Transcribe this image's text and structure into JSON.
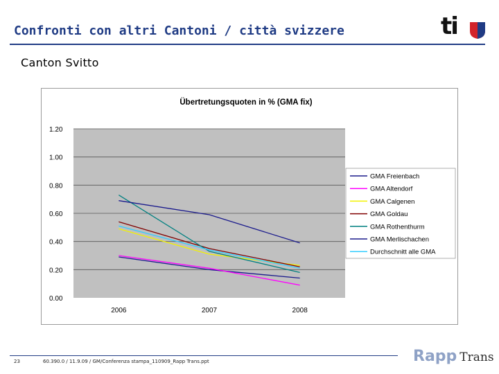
{
  "header": {
    "title": "Confronti con altri Cantoni / città svizzere",
    "subtitle": "Canton Svitto",
    "logo_text": "ti"
  },
  "footer": {
    "page_number": "23",
    "reference": "60.390.0 / 11.9.09 / GM/Conferenza stampa_110909_Rapp Trans.ppt",
    "company_part1": "Rapp",
    "company_part2": "Trans"
  },
  "colors": {
    "title": "#1f3b84",
    "plot_bg": "#c0c0c0"
  },
  "chart_data": {
    "type": "line",
    "title": "Übertretungsquoten in % (GMA fix)",
    "xlabel": "",
    "ylabel": "",
    "categories": [
      "2006",
      "2007",
      "2008"
    ],
    "ylim": [
      0,
      1.2
    ],
    "yticks": [
      "0.00",
      "0.20",
      "0.40",
      "0.60",
      "0.80",
      "1.00",
      "1.20"
    ],
    "grid": "horizontal",
    "legend_position": "right",
    "series": [
      {
        "name": "GMA Freienbach",
        "color": "#1a1a8c",
        "values": [
          0.29,
          0.2,
          0.14
        ]
      },
      {
        "name": "GMA Altendorf",
        "color": "#ff00ff",
        "values": [
          0.3,
          0.21,
          0.09
        ]
      },
      {
        "name": "GMA Calgenen",
        "color": "#f2f200",
        "values": [
          0.49,
          0.31,
          0.23
        ]
      },
      {
        "name": "GMA Goldau",
        "color": "#800000",
        "values": [
          0.54,
          0.35,
          0.22
        ]
      },
      {
        "name": "GMA Rothenthurm",
        "color": "#008080",
        "values": [
          0.73,
          0.33,
          0.18
        ]
      },
      {
        "name": "GMA Merlischachen",
        "color": "#1a1a8c",
        "values": [
          0.69,
          0.59,
          0.39
        ]
      },
      {
        "name": "Durchschnitt alle GMA",
        "color": "#33ccff",
        "values": [
          0.51,
          0.34,
          0.21
        ]
      }
    ]
  }
}
